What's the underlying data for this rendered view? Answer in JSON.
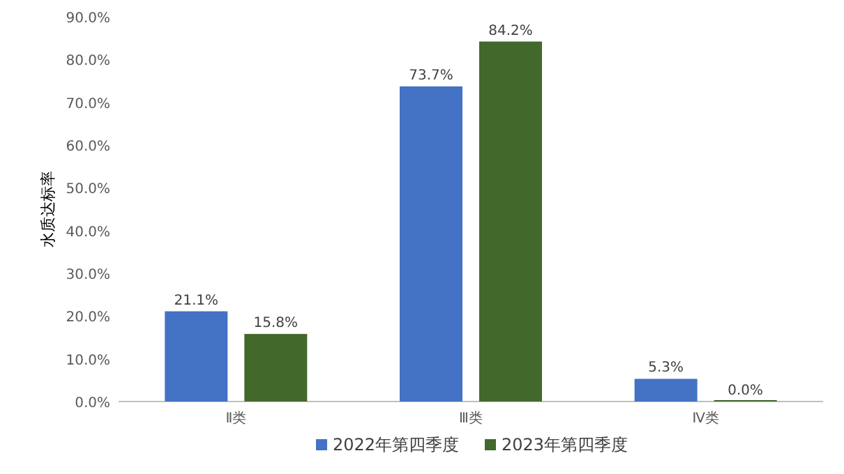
{
  "chart_data": {
    "type": "bar",
    "ylabel": "水质达标率",
    "categories": [
      "Ⅱ类",
      "Ⅲ类",
      "Ⅳ类"
    ],
    "series": [
      {
        "name": "2022年第四季度",
        "color": "#4472c4",
        "values": [
          21.1,
          73.7,
          5.3
        ],
        "value_labels": [
          "21.1%",
          "73.7%",
          "5.3%"
        ]
      },
      {
        "name": "2023年第四季度",
        "color": "#43682b",
        "values": [
          15.8,
          84.2,
          0.0
        ],
        "value_labels": [
          "15.8%",
          "84.2%",
          "0.0%"
        ]
      }
    ],
    "ylim": [
      0,
      90
    ],
    "yticks": [
      {
        "value": 0,
        "label": "0.0%"
      },
      {
        "value": 10,
        "label": "10.0%"
      },
      {
        "value": 20,
        "label": "20.0%"
      },
      {
        "value": 30,
        "label": "30.0%"
      },
      {
        "value": 40,
        "label": "40.0%"
      },
      {
        "value": 50,
        "label": "50.0%"
      },
      {
        "value": 60,
        "label": "60.0%"
      },
      {
        "value": 70,
        "label": "70.0%"
      },
      {
        "value": 80,
        "label": "80.0%"
      },
      {
        "value": 90,
        "label": "90.0%"
      }
    ],
    "grid": false,
    "legend": "bottom"
  }
}
